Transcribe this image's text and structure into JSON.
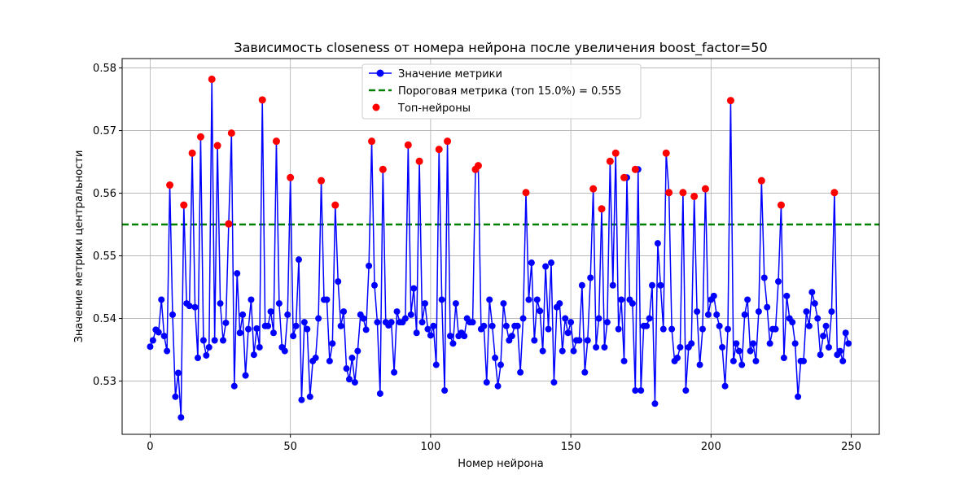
{
  "chart_data": {
    "type": "line",
    "title": "Зависимость closeness от номера нейрона после увеличения boost_factor=50",
    "xlabel": "Номер нейрона",
    "ylabel": "Значение метрики центральности",
    "xlim": [
      -10,
      260
    ],
    "ylim": [
      0.5215,
      0.5815
    ],
    "xticks": [
      0,
      50,
      100,
      150,
      200,
      250
    ],
    "yticks": [
      0.53,
      0.54,
      0.55,
      0.56,
      0.57,
      0.58
    ],
    "xtick_labels": [
      "0",
      "50",
      "100",
      "150",
      "200",
      "250"
    ],
    "ytick_labels": [
      "0.53",
      "0.54",
      "0.55",
      "0.56",
      "0.57",
      "0.58"
    ],
    "grid": true,
    "legend_position": "top-center",
    "colors": {
      "line": "#0000ff",
      "threshold": "#008000",
      "top": "#ff0000"
    },
    "threshold": {
      "label": "Пороговая метрика (топ 15.0%) = 0.555",
      "value": 0.555
    },
    "series": [
      {
        "name": "Значение метрики",
        "x": [
          0,
          1,
          2,
          3,
          4,
          5,
          6,
          7,
          8,
          9,
          10,
          11,
          12,
          13,
          14,
          15,
          16,
          17,
          18,
          19,
          20,
          21,
          22,
          23,
          24,
          25,
          26,
          27,
          28,
          29,
          30,
          31,
          32,
          33,
          34,
          35,
          36,
          37,
          38,
          39,
          40,
          41,
          42,
          43,
          44,
          45,
          46,
          47,
          48,
          49,
          50,
          51,
          52,
          53,
          54,
          55,
          56,
          57,
          58,
          59,
          60,
          61,
          62,
          63,
          64,
          65,
          66,
          67,
          68,
          69,
          70,
          71,
          72,
          73,
          74,
          75,
          76,
          77,
          78,
          79,
          80,
          81,
          82,
          83,
          84,
          85,
          86,
          87,
          88,
          89,
          90,
          91,
          92,
          93,
          94,
          95,
          96,
          97,
          98,
          99,
          100,
          101,
          102,
          103,
          104,
          105,
          106,
          107,
          108,
          109,
          110,
          111,
          112,
          113,
          114,
          115,
          116,
          117,
          118,
          119,
          120,
          121,
          122,
          123,
          124,
          125,
          126,
          127,
          128,
          129,
          130,
          131,
          132,
          133,
          134,
          135,
          136,
          137,
          138,
          139,
          140,
          141,
          142,
          143,
          144,
          145,
          146,
          147,
          148,
          149,
          150,
          151,
          152,
          153,
          154,
          155,
          156,
          157,
          158,
          159,
          160,
          161,
          162,
          163,
          164,
          165,
          166,
          167,
          168,
          169,
          170,
          171,
          172,
          173,
          174,
          175,
          176,
          177,
          178,
          179,
          180,
          181,
          182,
          183,
          184,
          185,
          186,
          187,
          188,
          189,
          190,
          191,
          192,
          193,
          194,
          195,
          196,
          197,
          198,
          199,
          200,
          201,
          202,
          203,
          204,
          205,
          206,
          207,
          208,
          209,
          210,
          211,
          212,
          213,
          214,
          215,
          216,
          217,
          218,
          219,
          220,
          221,
          222,
          223,
          224,
          225,
          226,
          227,
          228,
          229,
          230,
          231,
          232,
          233,
          234,
          235,
          236,
          237,
          238,
          239,
          240,
          241,
          242,
          243,
          244,
          245,
          246,
          247,
          248,
          249
        ],
        "y": [
          0.5355,
          0.5365,
          0.5382,
          0.5378,
          0.543,
          0.5372,
          0.5348,
          0.5613,
          0.5406,
          0.5275,
          0.5313,
          0.5242,
          0.5581,
          0.5424,
          0.542,
          0.5664,
          0.5418,
          0.5337,
          0.569,
          0.5365,
          0.5341,
          0.5354,
          0.5782,
          0.5365,
          0.5676,
          0.5424,
          0.5365,
          0.5393,
          0.5551,
          0.5696,
          0.5292,
          0.5472,
          0.5377,
          0.5406,
          0.5309,
          0.5383,
          0.543,
          0.5342,
          0.5384,
          0.5354,
          0.5749,
          0.5388,
          0.5388,
          0.5411,
          0.5377,
          0.5683,
          0.5424,
          0.5354,
          0.5348,
          0.5406,
          0.5625,
          0.5372,
          0.5388,
          0.5494,
          0.527,
          0.5394,
          0.5383,
          0.5275,
          0.5332,
          0.5337,
          0.54,
          0.562,
          0.543,
          0.543,
          0.5332,
          0.536,
          0.5581,
          0.5459,
          0.5388,
          0.5411,
          0.532,
          0.5303,
          0.5337,
          0.5298,
          0.5348,
          0.5406,
          0.54,
          0.5382,
          0.5484,
          0.5683,
          0.5453,
          0.5394,
          0.528,
          0.5638,
          0.5394,
          0.5389,
          0.5394,
          0.5314,
          0.5411,
          0.5394,
          0.5394,
          0.54,
          0.5677,
          0.5406,
          0.5448,
          0.5377,
          0.5651,
          0.5394,
          0.5424,
          0.5383,
          0.5373,
          0.5388,
          0.5326,
          0.567,
          0.543,
          0.5285,
          0.5683,
          0.5372,
          0.536,
          0.5424,
          0.5372,
          0.5377,
          0.5372,
          0.54,
          0.5394,
          0.5394,
          0.5638,
          0.5644,
          0.5383,
          0.5388,
          0.5298,
          0.543,
          0.5388,
          0.5337,
          0.5292,
          0.5326,
          0.5424,
          0.5388,
          0.5365,
          0.5372,
          0.5388,
          0.5388,
          0.5314,
          0.54,
          0.5601,
          0.543,
          0.5489,
          0.5365,
          0.543,
          0.5412,
          0.5348,
          0.5483,
          0.5383,
          0.5489,
          0.5298,
          0.5418,
          0.5424,
          0.5348,
          0.54,
          0.5377,
          0.5394,
          0.5348,
          0.5365,
          0.5365,
          0.5453,
          0.5314,
          0.5365,
          0.5465,
          0.5607,
          0.5354,
          0.54,
          0.5575,
          0.5354,
          0.5394,
          0.5651,
          0.5453,
          0.5664,
          0.5383,
          0.543,
          0.5332,
          0.5625,
          0.543,
          0.5424,
          0.5285,
          0.5638,
          0.5285,
          0.5388,
          0.5388,
          0.54,
          0.5453,
          0.5264,
          0.552,
          0.5453,
          0.5383,
          0.5664,
          0.5601,
          0.5383,
          0.5332,
          0.5337,
          0.5354,
          0.5601,
          0.5285,
          0.5354,
          0.536,
          0.5595,
          0.5411,
          0.5326,
          0.5383,
          0.5607,
          0.5406,
          0.543,
          0.5436,
          0.5406,
          0.5388,
          0.5354,
          0.5292,
          0.5383,
          0.5748,
          0.5332,
          0.536,
          0.5348,
          0.5326,
          0.5406,
          0.543,
          0.5348,
          0.536,
          0.5332,
          0.5411,
          0.562,
          0.5465,
          0.5418,
          0.536,
          0.5383,
          0.5383,
          0.5459,
          0.5581,
          0.5337,
          0.5436,
          0.54,
          0.5394,
          0.536,
          0.5275,
          0.5332,
          0.5332,
          0.5411,
          0.5388,
          0.5442,
          0.5424,
          0.54,
          0.5342,
          0.5372,
          0.5388,
          0.5354,
          0.5411,
          0.5601,
          0.5342,
          0.5348,
          0.5332,
          0.5377,
          0.536
        ]
      },
      {
        "name": "Топ-нейроны",
        "x": [
          7,
          12,
          15,
          18,
          22,
          24,
          28,
          29,
          40,
          45,
          50,
          61,
          66,
          79,
          83,
          92,
          96,
          103,
          106,
          116,
          117,
          134,
          158,
          161,
          164,
          166,
          169,
          173,
          184,
          185,
          190,
          194,
          198,
          207,
          218,
          225,
          244
        ],
        "y": [
          0.5613,
          0.5581,
          0.5664,
          0.569,
          0.5782,
          0.5676,
          0.5551,
          0.5696,
          0.5749,
          0.5683,
          0.5625,
          0.562,
          0.5581,
          0.5683,
          0.5638,
          0.5677,
          0.5651,
          0.567,
          0.5683,
          0.5638,
          0.5644,
          0.5601,
          0.5607,
          0.5575,
          0.5651,
          0.5664,
          0.5625,
          0.5638,
          0.5664,
          0.5601,
          0.5601,
          0.5595,
          0.5607,
          0.5748,
          0.562,
          0.5581,
          0.5601
        ]
      }
    ]
  }
}
